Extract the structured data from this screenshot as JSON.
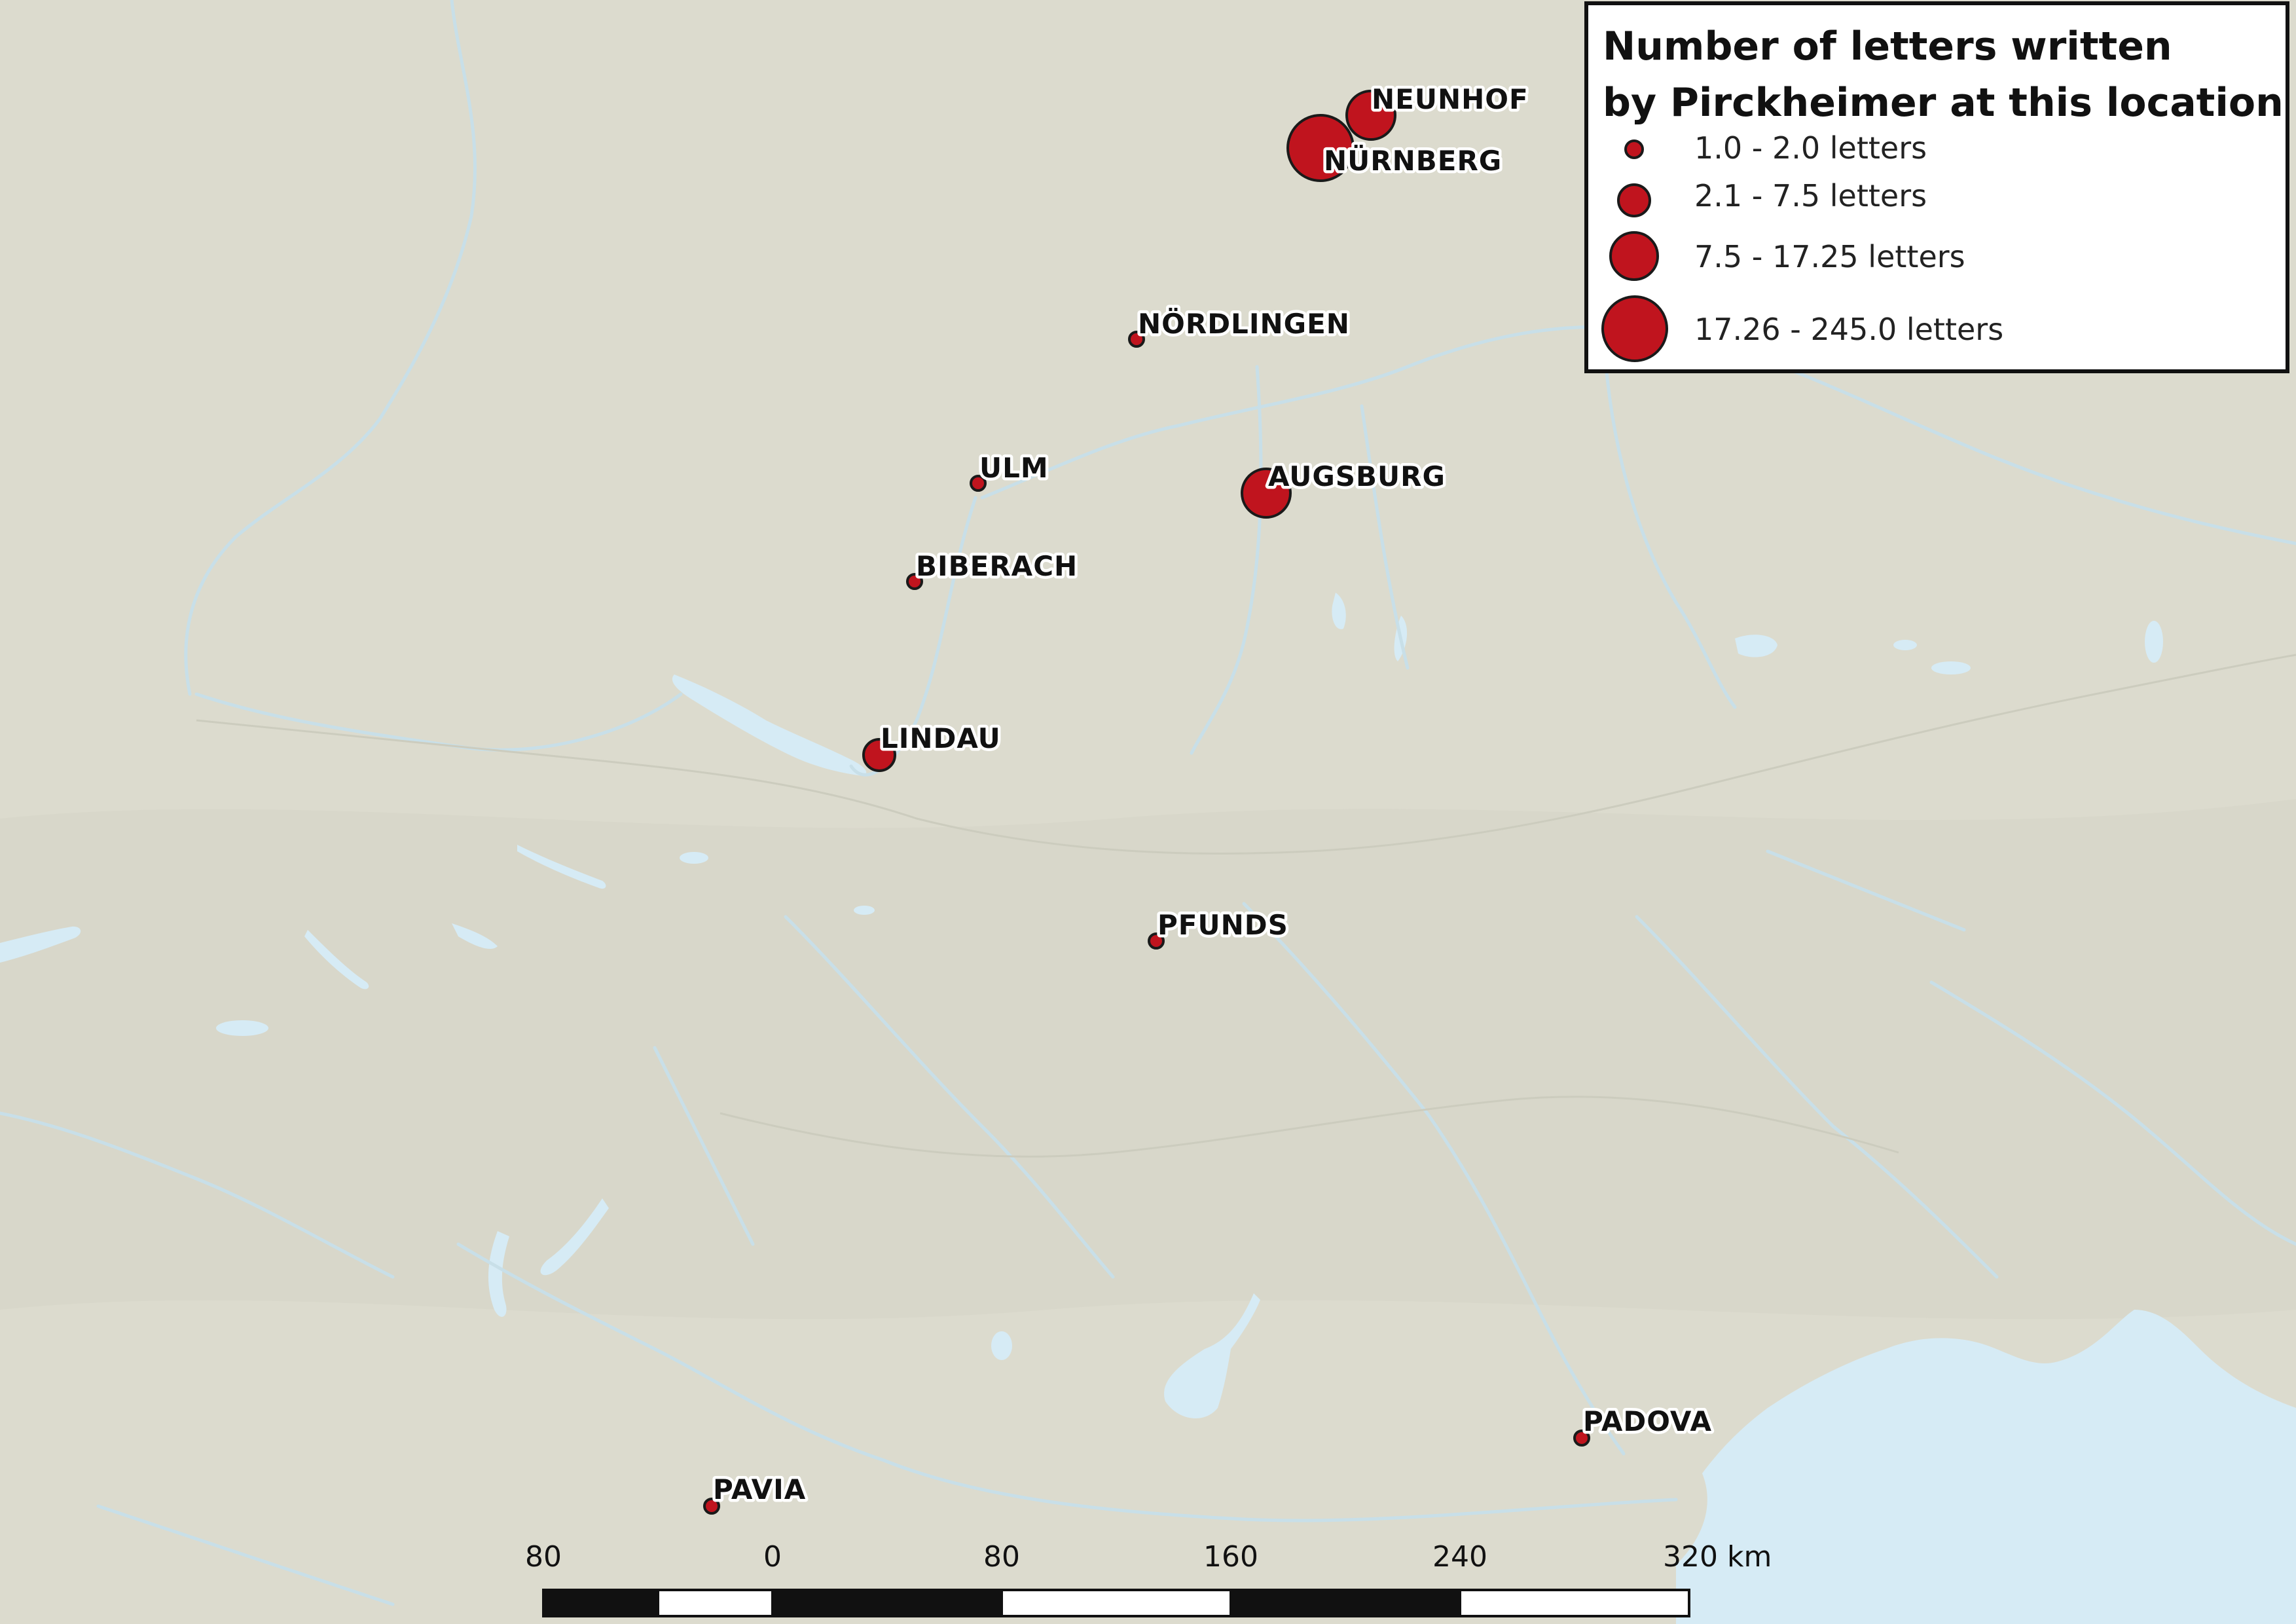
{
  "map": {
    "places": [
      {
        "name": "NEUNHOF",
        "category": 3
      },
      {
        "name": "NÜRNBERG",
        "category": 4
      },
      {
        "name": "NÖRDLINGEN",
        "category": 1
      },
      {
        "name": "ULM",
        "category": 1
      },
      {
        "name": "AUGSBURG",
        "category": 3
      },
      {
        "name": "BIBERACH",
        "category": 1
      },
      {
        "name": "LINDAU",
        "category": 2
      },
      {
        "name": "PFUNDS",
        "category": 1
      },
      {
        "name": "PADOVA",
        "category": 1
      },
      {
        "name": "PAVIA",
        "category": 1
      }
    ],
    "colors": {
      "land": "#dcdbce",
      "water": "#d6ebf5",
      "rivers": "#c8dfe8",
      "symbol_fill": "#c0141e",
      "symbol_stroke": "#1a1a1a"
    }
  },
  "legend": {
    "title_line1": "Number of letters written",
    "title_line2": "by Pirckheimer at this location",
    "items": [
      {
        "label": "1.0 - 2.0 letters"
      },
      {
        "label": "2.1 - 7.5 letters"
      },
      {
        "label": "7.5 - 17.25 letters"
      },
      {
        "label": "17.26 - 245.0 letters"
      }
    ]
  },
  "scale_bar": {
    "labels": [
      "80",
      "0",
      "80",
      "160",
      "240",
      "320 km"
    ]
  }
}
